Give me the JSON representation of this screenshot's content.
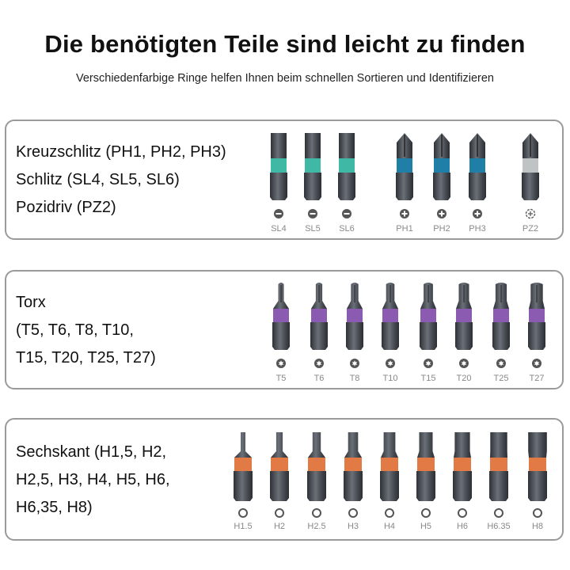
{
  "header": {
    "title": "Die benötigten Teile sind leicht zu finden",
    "subtitle": "Verschiedenfarbige Ringe helfen Ihnen beim schnellen Sortieren und Identifizieren"
  },
  "colors": {
    "slot_ring": "#3fb8a6",
    "phillips_ring": "#1f7fa6",
    "pozidriv_ring": "#bfc3c3",
    "torx_ring": "#8a5bb0",
    "hex_ring": "#e27a45",
    "steel_dark": "#3a3e44",
    "steel_light": "#6b7078",
    "panel_border": "#9a9a9a"
  },
  "panels": [
    {
      "lines": [
        "Kreuzschlitz (PH1, PH2, PH3)",
        "Schlitz (SL4, SL5, SL6)",
        "Pozidriv (PZ2)"
      ],
      "bits": [
        {
          "label": "SL4",
          "type": "slot",
          "symbol": "minus-icon",
          "ring": "slot_ring"
        },
        {
          "label": "SL5",
          "type": "slot",
          "symbol": "minus-icon",
          "ring": "slot_ring"
        },
        {
          "label": "SL6",
          "type": "slot",
          "symbol": "minus-icon",
          "ring": "slot_ring"
        },
        {
          "label": "PH1",
          "type": "phillips",
          "symbol": "plus-icon",
          "ring": "phillips_ring"
        },
        {
          "label": "PH2",
          "type": "phillips",
          "symbol": "plus-icon",
          "ring": "phillips_ring"
        },
        {
          "label": "PH3",
          "type": "phillips",
          "symbol": "plus-icon",
          "ring": "phillips_ring"
        },
        {
          "label": "PZ2",
          "type": "pozidriv",
          "symbol": "pozidriv-icon",
          "ring": "pozidriv_ring"
        }
      ]
    },
    {
      "lines": [
        "Torx",
        "(T5, T6, T8, T10,",
        "T15, T20, T25, T27)"
      ],
      "bits": [
        {
          "label": "T5",
          "type": "torx",
          "symbol": "torx-icon",
          "ring": "torx_ring"
        },
        {
          "label": "T6",
          "type": "torx",
          "symbol": "torx-icon",
          "ring": "torx_ring"
        },
        {
          "label": "T8",
          "type": "torx",
          "symbol": "torx-icon",
          "ring": "torx_ring"
        },
        {
          "label": "T10",
          "type": "torx",
          "symbol": "torx-icon",
          "ring": "torx_ring"
        },
        {
          "label": "T15",
          "type": "torx",
          "symbol": "torx-icon",
          "ring": "torx_ring"
        },
        {
          "label": "T20",
          "type": "torx",
          "symbol": "torx-icon",
          "ring": "torx_ring"
        },
        {
          "label": "T25",
          "type": "torx",
          "symbol": "torx-icon",
          "ring": "torx_ring"
        },
        {
          "label": "T27",
          "type": "torx",
          "symbol": "torx-icon",
          "ring": "torx_ring"
        }
      ]
    },
    {
      "lines": [
        "Sechskant (H1,5, H2,",
        "H2,5, H3, H4, H5, H6,",
        "H6,35, H8)"
      ],
      "bits": [
        {
          "label": "H1.5",
          "type": "hex",
          "symbol": "hex-circle-icon",
          "ring": "hex_ring"
        },
        {
          "label": "H2",
          "type": "hex",
          "symbol": "hex-circle-icon",
          "ring": "hex_ring"
        },
        {
          "label": "H2.5",
          "type": "hex",
          "symbol": "hex-circle-icon",
          "ring": "hex_ring"
        },
        {
          "label": "H3",
          "type": "hex",
          "symbol": "hex-circle-icon",
          "ring": "hex_ring"
        },
        {
          "label": "H4",
          "type": "hex",
          "symbol": "hex-circle-icon",
          "ring": "hex_ring"
        },
        {
          "label": "H5",
          "type": "hex",
          "symbol": "hex-circle-icon",
          "ring": "hex_ring"
        },
        {
          "label": "H6",
          "type": "hex",
          "symbol": "hex-circle-icon",
          "ring": "hex_ring"
        },
        {
          "label": "H6.35",
          "type": "hex",
          "symbol": "hex-circle-icon",
          "ring": "hex_ring"
        },
        {
          "label": "H8",
          "type": "hex",
          "symbol": "hex-circle-icon",
          "ring": "hex_ring"
        }
      ]
    }
  ]
}
